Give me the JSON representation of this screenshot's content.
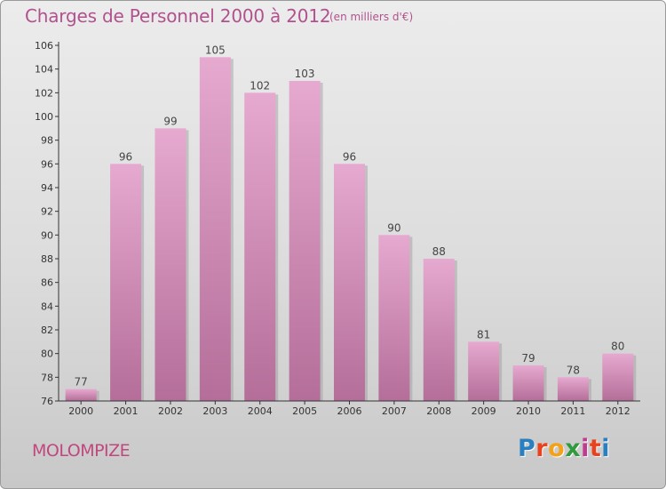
{
  "title": "Charges de Personnel 2000 à 2012",
  "unit_note": "(en milliers d'€)",
  "commune": "MOLOMPIZE",
  "logo": {
    "letters": [
      "P",
      "r",
      "o",
      "x",
      "i",
      "t",
      "i"
    ],
    "colors": [
      "#2a7fc0",
      "#e8421f",
      "#f3a21b",
      "#2f9a3e",
      "#c03a8f",
      "#e8421f",
      "#2a7fc0"
    ]
  },
  "colors": {
    "title": "#b0528d",
    "bar_light": "#e6a9cf",
    "bar_dark": "#b46e99",
    "axis": "#333333"
  },
  "chart_data": {
    "type": "bar",
    "categories": [
      "2000",
      "2001",
      "2002",
      "2003",
      "2004",
      "2005",
      "2006",
      "2007",
      "2008",
      "2009",
      "2010",
      "2011",
      "2012"
    ],
    "values": [
      77,
      96,
      99,
      105,
      102,
      103,
      96,
      90,
      88,
      81,
      79,
      78,
      80
    ],
    "ylim": [
      76,
      106
    ],
    "yticks": [
      76,
      78,
      80,
      82,
      84,
      86,
      88,
      90,
      92,
      94,
      96,
      98,
      100,
      102,
      104,
      106
    ],
    "grid": false,
    "data_labels": true
  }
}
